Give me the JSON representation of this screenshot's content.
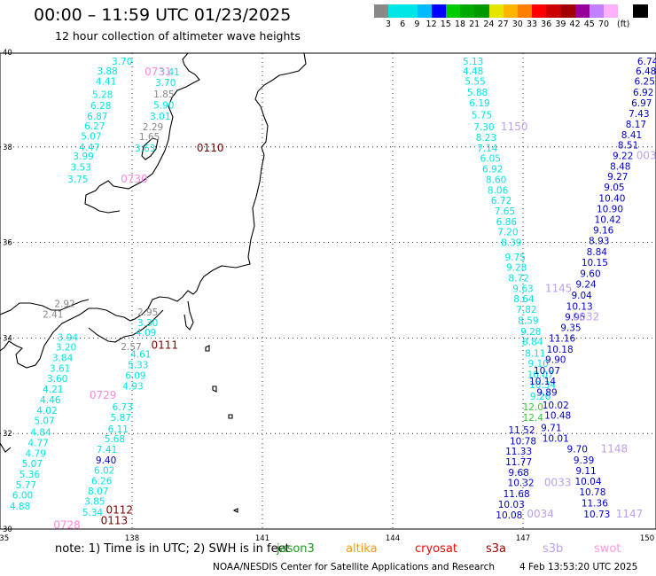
{
  "header": {
    "title": "00:00 – 11:59 UTC 01/23/2025",
    "subtitle": "12 hour collection of altimeter wave heights"
  },
  "legend": {
    "colors": [
      "#888888",
      "#00e5e5",
      "#00e5e5",
      "#00bbff",
      "#0000ff",
      "#00cc00",
      "#00aa00",
      "#009900",
      "#e5e500",
      "#ffb400",
      "#ff8000",
      "#ff0000",
      "#cc0000",
      "#a00000",
      "#990099",
      "#c080ff",
      "#ffb0ff",
      "#ffffff",
      "#000000"
    ],
    "ticks": [
      "3",
      "6",
      "9",
      "12",
      "15",
      "18",
      "21",
      "24",
      "27",
      "30",
      "33",
      "36",
      "39",
      "42",
      "45",
      "70",
      "(ft)"
    ]
  },
  "map": {
    "lon_labels": [
      "135",
      "138",
      "141",
      "144",
      "147",
      "150"
    ],
    "lat_labels": [
      "40",
      "38",
      "36",
      "34",
      "32",
      "30"
    ],
    "series_colors": {
      "jason3": "#00e5e5",
      "saral": "#0000cc",
      "cryosat": "#cc0000",
      "s3a": "#800000",
      "s3b": "#bba0ee",
      "swot": "#ff88dd",
      "gray": "#888888"
    },
    "passes": [
      {
        "color": "jason3",
        "items": [
          {
            "v": "3.70",
            "lon": 137.77,
            "lat": 39.8
          },
          {
            "v": "3.88",
            "lon": 137.43,
            "lat": 39.59
          },
          {
            "v": "4.41",
            "lon": 137.4,
            "lat": 39.38
          },
          {
            "v": "5.28",
            "lon": 137.32,
            "lat": 39.1
          },
          {
            "v": "6.28",
            "lon": 137.28,
            "lat": 38.87
          },
          {
            "v": "6.87",
            "lon": 137.2,
            "lat": 38.65
          },
          {
            "v": "6.27",
            "lon": 137.14,
            "lat": 38.44
          },
          {
            "v": "5.07",
            "lon": 137.06,
            "lat": 38.23
          },
          {
            "v": "4.47",
            "lon": 137.02,
            "lat": 38.0
          },
          {
            "v": "3.99",
            "lon": 136.88,
            "lat": 37.81
          },
          {
            "v": "3.53",
            "lon": 136.82,
            "lat": 37.58
          },
          {
            "v": "3.75",
            "lon": 136.75,
            "lat": 37.33
          }
        ]
      },
      {
        "color": "jason3",
        "items": [
          {
            "v": "3.41",
            "lon": 138.86,
            "lat": 39.57
          },
          {
            "v": "3.70",
            "lon": 138.77,
            "lat": 39.35
          },
          {
            "v": "5.90",
            "lon": 138.73,
            "lat": 38.88
          },
          {
            "v": "3.01",
            "lon": 138.65,
            "lat": 38.65
          },
          {
            "v": "3.63",
            "lon": 138.3,
            "lat": 37.98
          }
        ]
      },
      {
        "color": "gray",
        "items": [
          {
            "v": "1.85",
            "lon": 138.73,
            "lat": 39.11
          },
          {
            "v": "2.29",
            "lon": 138.48,
            "lat": 38.42
          },
          {
            "v": "1.65",
            "lon": 138.4,
            "lat": 38.22
          },
          {
            "v": "2.92",
            "lon": 136.45,
            "lat": 34.72
          },
          {
            "v": "2.41",
            "lon": 136.18,
            "lat": 34.5
          },
          {
            "v": "2.95",
            "lon": 138.36,
            "lat": 34.55
          },
          {
            "v": "2.57",
            "lon": 137.98,
            "lat": 33.82
          }
        ]
      },
      {
        "color": "swot",
        "items": [
          {
            "v": "0731",
            "lon": 138.6,
            "lat": 39.57
          },
          {
            "v": "0730",
            "lon": 138.05,
            "lat": 37.33
          },
          {
            "v": "0729",
            "lon": 137.33,
            "lat": 32.8
          },
          {
            "v": "0728",
            "lon": 136.5,
            "lat": 30.08
          }
        ]
      },
      {
        "color": "cryosat",
        "items": []
      },
      {
        "color": "s3a",
        "items": [
          {
            "v": "0110",
            "lon": 139.8,
            "lat": 37.98
          },
          {
            "v": "0111",
            "lon": 138.75,
            "lat": 33.85
          },
          {
            "v": "0112",
            "lon": 137.71,
            "lat": 30.4
          },
          {
            "v": "0113",
            "lon": 137.59,
            "lat": 30.18
          }
        ]
      },
      {
        "color": "jason3",
        "items": [
          {
            "v": "3.30",
            "lon": 138.36,
            "lat": 34.32
          },
          {
            "v": "4.09",
            "lon": 138.32,
            "lat": 34.12
          },
          {
            "v": "4.61",
            "lon": 138.2,
            "lat": 33.66
          },
          {
            "v": "5.33",
            "lon": 138.14,
            "lat": 33.44
          },
          {
            "v": "6.09",
            "lon": 138.08,
            "lat": 33.22
          },
          {
            "v": "4.93",
            "lon": 138.02,
            "lat": 33.0
          },
          {
            "v": "6.73",
            "lon": 137.78,
            "lat": 32.56
          },
          {
            "v": "5.87",
            "lon": 137.74,
            "lat": 32.34
          },
          {
            "v": "6.11",
            "lon": 137.68,
            "lat": 32.1
          },
          {
            "v": "5.68",
            "lon": 137.6,
            "lat": 31.89
          },
          {
            "v": "7.41",
            "lon": 137.42,
            "lat": 31.67
          },
          {
            "v": "6.02",
            "lon": 137.36,
            "lat": 31.23
          },
          {
            "v": "6.26",
            "lon": 137.3,
            "lat": 31.01
          },
          {
            "v": "8.07",
            "lon": 137.22,
            "lat": 30.8
          },
          {
            "v": "3.85",
            "lon": 137.14,
            "lat": 30.58
          },
          {
            "v": "5.34",
            "lon": 137.09,
            "lat": 30.35
          }
        ]
      },
      {
        "color": "saral",
        "items": [
          {
            "v": "9.40",
            "lon": 137.4,
            "lat": 31.45
          }
        ]
      },
      {
        "color": "jason3",
        "items": [
          {
            "v": "3.94",
            "lon": 136.52,
            "lat": 34.02
          },
          {
            "v": "3.20",
            "lon": 136.48,
            "lat": 33.81
          },
          {
            "v": "3.84",
            "lon": 136.4,
            "lat": 33.59
          },
          {
            "v": "3.61",
            "lon": 136.34,
            "lat": 33.37
          },
          {
            "v": "3.60",
            "lon": 136.28,
            "lat": 33.15
          },
          {
            "v": "4.21",
            "lon": 136.18,
            "lat": 32.93
          },
          {
            "v": "4.46",
            "lon": 136.12,
            "lat": 32.71
          },
          {
            "v": "4.02",
            "lon": 136.04,
            "lat": 32.49
          },
          {
            "v": "5.07",
            "lon": 135.98,
            "lat": 32.27
          },
          {
            "v": "4.84",
            "lon": 135.9,
            "lat": 32.03
          },
          {
            "v": "4.77",
            "lon": 135.84,
            "lat": 31.81
          },
          {
            "v": "4.79",
            "lon": 135.78,
            "lat": 31.59
          },
          {
            "v": "5.07",
            "lon": 135.7,
            "lat": 31.37
          },
          {
            "v": "5.36",
            "lon": 135.64,
            "lat": 31.15
          },
          {
            "v": "5.77",
            "lon": 135.56,
            "lat": 30.93
          },
          {
            "v": "6.00",
            "lon": 135.48,
            "lat": 30.71
          },
          {
            "v": "4.88",
            "lon": 135.42,
            "lat": 30.48
          }
        ]
      },
      {
        "color": "jason3",
        "items": [
          {
            "v": "5.13",
            "lon": 145.85,
            "lat": 39.8
          },
          {
            "v": "4.48",
            "lon": 145.85,
            "lat": 39.59
          },
          {
            "v": "5.55",
            "lon": 145.9,
            "lat": 39.38
          },
          {
            "v": "5.88",
            "lon": 145.95,
            "lat": 39.15
          },
          {
            "v": "6.19",
            "lon": 146.0,
            "lat": 38.92
          },
          {
            "v": "5.75",
            "lon": 146.05,
            "lat": 38.67
          },
          {
            "v": "7.30",
            "lon": 146.1,
            "lat": 38.42
          },
          {
            "v": "8.23",
            "lon": 146.15,
            "lat": 38.2
          },
          {
            "v": "7.14",
            "lon": 146.18,
            "lat": 37.98
          },
          {
            "v": "6.05",
            "lon": 146.25,
            "lat": 37.76
          },
          {
            "v": "6.92",
            "lon": 146.3,
            "lat": 37.54
          },
          {
            "v": "8.60",
            "lon": 146.38,
            "lat": 37.32
          },
          {
            "v": "8.06",
            "lon": 146.42,
            "lat": 37.1
          },
          {
            "v": "6.72",
            "lon": 146.5,
            "lat": 36.88
          },
          {
            "v": "7.65",
            "lon": 146.58,
            "lat": 36.66
          },
          {
            "v": "6.86",
            "lon": 146.62,
            "lat": 36.44
          },
          {
            "v": "7.20",
            "lon": 146.65,
            "lat": 36.22
          },
          {
            "v": "8.39",
            "lon": 146.73,
            "lat": 36.0
          },
          {
            "v": "9.75",
            "lon": 146.82,
            "lat": 35.7
          },
          {
            "v": "9.28",
            "lon": 146.85,
            "lat": 35.48
          },
          {
            "v": "8.72",
            "lon": 146.9,
            "lat": 35.26
          },
          {
            "v": "9.63",
            "lon": 147.0,
            "lat": 35.04
          },
          {
            "v": "8.64",
            "lon": 147.02,
            "lat": 34.82
          },
          {
            "v": "7.82",
            "lon": 147.08,
            "lat": 34.6
          },
          {
            "v": "8.59",
            "lon": 147.12,
            "lat": 34.37
          },
          {
            "v": "9.28",
            "lon": 147.18,
            "lat": 34.14
          },
          {
            "v": "8.84",
            "lon": 147.22,
            "lat": 33.92
          },
          {
            "v": "8.11",
            "lon": 147.28,
            "lat": 33.68
          },
          {
            "v": "9.10",
            "lon": 147.35,
            "lat": 33.47
          },
          {
            "v": "10.07",
            "lon": 147.4,
            "lat": 33.24
          },
          {
            "v": "10.34",
            "lon": 147.45,
            "lat": 33.02
          },
          {
            "v": "9.26",
            "lon": 147.4,
            "lat": 32.78
          }
        ]
      },
      {
        "color": "saral",
        "items": [
          {
            "v": "6.74",
            "lon": 149.87,
            "lat": 39.8
          },
          {
            "v": "6.48",
            "lon": 149.83,
            "lat": 39.59
          },
          {
            "v": "6.25",
            "lon": 149.8,
            "lat": 39.38
          },
          {
            "v": "6.92",
            "lon": 149.77,
            "lat": 39.15
          },
          {
            "v": "6.97",
            "lon": 149.73,
            "lat": 38.92
          },
          {
            "v": "7.43",
            "lon": 149.67,
            "lat": 38.7
          },
          {
            "v": "8.17",
            "lon": 149.6,
            "lat": 38.48
          },
          {
            "v": "8.41",
            "lon": 149.5,
            "lat": 38.26
          },
          {
            "v": "8.51",
            "lon": 149.42,
            "lat": 38.04
          },
          {
            "v": "9.22",
            "lon": 149.3,
            "lat": 37.82
          },
          {
            "v": "8.48",
            "lon": 149.24,
            "lat": 37.6
          },
          {
            "v": "9.27",
            "lon": 149.18,
            "lat": 37.38
          },
          {
            "v": "9.05",
            "lon": 149.1,
            "lat": 37.16
          },
          {
            "v": "10.40",
            "lon": 149.05,
            "lat": 36.93
          },
          {
            "v": "10.90",
            "lon": 149.0,
            "lat": 36.71
          },
          {
            "v": "10.42",
            "lon": 148.95,
            "lat": 36.48
          },
          {
            "v": "9.16",
            "lon": 148.85,
            "lat": 36.26
          },
          {
            "v": "8.93",
            "lon": 148.75,
            "lat": 36.04
          },
          {
            "v": "8.84",
            "lon": 148.7,
            "lat": 35.81
          },
          {
            "v": "10.15",
            "lon": 148.65,
            "lat": 35.58
          },
          {
            "v": "9.60",
            "lon": 148.55,
            "lat": 35.35
          },
          {
            "v": "9.24",
            "lon": 148.45,
            "lat": 35.13
          },
          {
            "v": "9.04",
            "lon": 148.35,
            "lat": 34.9
          },
          {
            "v": "10.13",
            "lon": 148.3,
            "lat": 34.67
          },
          {
            "v": "9.95",
            "lon": 148.2,
            "lat": 34.44
          },
          {
            "v": "9.35",
            "lon": 148.1,
            "lat": 34.22
          },
          {
            "v": "11.16",
            "lon": 147.9,
            "lat": 34.0
          },
          {
            "v": "10.18",
            "lon": 147.85,
            "lat": 33.77
          },
          {
            "v": "9.90",
            "lon": 147.75,
            "lat": 33.55
          },
          {
            "v": "10.07",
            "lon": 147.55,
            "lat": 33.32
          },
          {
            "v": "10.14",
            "lon": 147.45,
            "lat": 33.1
          },
          {
            "v": "9.89",
            "lon": 147.55,
            "lat": 32.87
          },
          {
            "v": "10.02",
            "lon": 147.75,
            "lat": 32.6
          },
          {
            "v": "10.48",
            "lon": 147.8,
            "lat": 32.38
          },
          {
            "v": "9.71",
            "lon": 147.65,
            "lat": 32.12
          },
          {
            "v": "10.01",
            "lon": 147.75,
            "lat": 31.9
          },
          {
            "v": "9.70",
            "lon": 148.25,
            "lat": 31.68
          },
          {
            "v": "9.39",
            "lon": 148.4,
            "lat": 31.45
          },
          {
            "v": "9.11",
            "lon": 148.45,
            "lat": 31.22
          },
          {
            "v": "10.04",
            "lon": 148.5,
            "lat": 31.0
          },
          {
            "v": "10.78",
            "lon": 148.6,
            "lat": 30.78
          },
          {
            "v": "11.36",
            "lon": 148.65,
            "lat": 30.55
          },
          {
            "v": "10.73",
            "lon": 148.7,
            "lat": 30.32
          }
        ]
      },
      {
        "color": "saral",
        "items": [
          {
            "v": "11.52",
            "lon": 146.97,
            "lat": 32.08
          },
          {
            "v": "10.78",
            "lon": 147.0,
            "lat": 31.85
          },
          {
            "v": "11.33",
            "lon": 146.9,
            "lat": 31.63
          },
          {
            "v": "11.77",
            "lon": 146.9,
            "lat": 31.41
          },
          {
            "v": "9.68",
            "lon": 146.9,
            "lat": 31.19
          },
          {
            "v": "10.32",
            "lon": 146.95,
            "lat": 30.97
          },
          {
            "v": "11.68",
            "lon": 146.85,
            "lat": 30.74
          },
          {
            "v": "10.03",
            "lon": 146.73,
            "lat": 30.52
          },
          {
            "v": "10.08",
            "lon": 146.68,
            "lat": 30.3
          }
        ]
      },
      {
        "color": "lime",
        "items": [
          {
            "v": "12.0",
            "lon": 147.23,
            "lat": 32.56
          },
          {
            "v": "12.4",
            "lon": 147.23,
            "lat": 32.34
          }
        ]
      },
      {
        "color": "s3b",
        "items": [
          {
            "v": "1150",
            "lon": 146.8,
            "lat": 38.42
          },
          {
            "v": "1145",
            "lon": 147.82,
            "lat": 35.04
          },
          {
            "v": "0032",
            "lon": 148.45,
            "lat": 34.44
          },
          {
            "v": "1148",
            "lon": 149.1,
            "lat": 31.68
          },
          {
            "v": "0033",
            "lon": 147.8,
            "lat": 30.97
          },
          {
            "v": "0034",
            "lon": 147.4,
            "lat": 30.32
          },
          {
            "v": "1147",
            "lon": 149.45,
            "lat": 30.32
          },
          {
            "v": "003",
            "lon": 149.84,
            "lat": 37.82
          }
        ]
      }
    ]
  },
  "footer": {
    "note_prefix": "note:  1) Time is in UTC;  2) SWH is in feet",
    "satellites": [
      {
        "name": "jason3",
        "color": "#1a9c1a"
      },
      {
        "name": "altika",
        "color": "#ff9900"
      },
      {
        "name": "cryosat",
        "color": "#ff0000"
      },
      {
        "name": "s3a",
        "color": "#990000"
      },
      {
        "name": "s3b",
        "color": "#bba0ee"
      },
      {
        "name": "swot",
        "color": "#ff99dd"
      }
    ],
    "credit": "NOAA/NESDIS Center for Satellite Applications and Research",
    "timestamp": "4 Feb 13:53:20 UTC 2025"
  }
}
